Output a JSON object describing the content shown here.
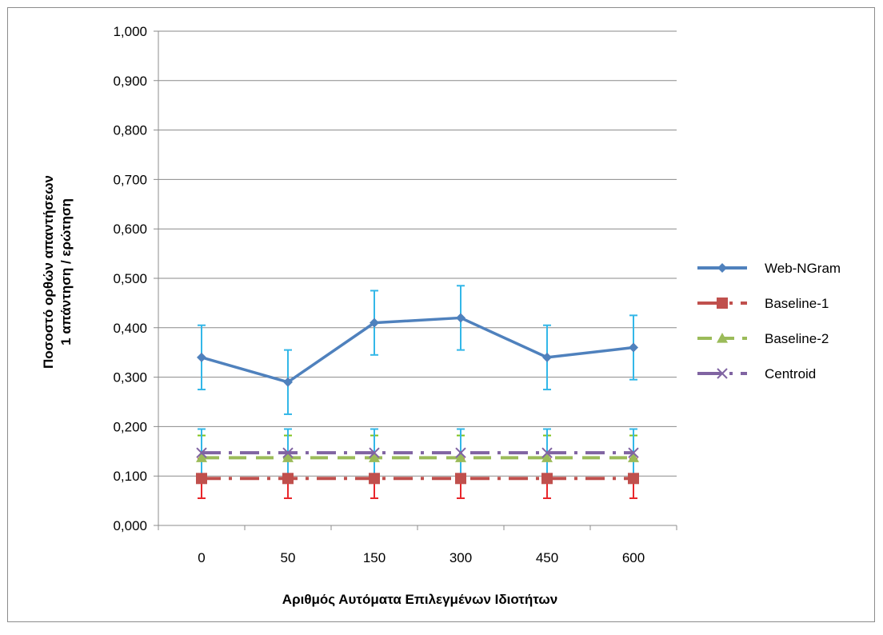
{
  "chart_data": {
    "type": "line",
    "title": "",
    "xlabel": "Αριθμός Αυτόματα Επιλεγμένων Ιδιοτήτων",
    "ylabel_lines": [
      "Ποσοστό ορθών απαντήσεων",
      "1 απάντηση / ερώτηση"
    ],
    "categories": [
      "0",
      "50",
      "150",
      "300",
      "450",
      "600"
    ],
    "ylim": [
      0,
      1
    ],
    "yticks": [
      "0,000",
      "0,100",
      "0,200",
      "0,300",
      "0,400",
      "0,500",
      "0,600",
      "0,700",
      "0,800",
      "0,900",
      "1,000"
    ],
    "grid": "horizontal",
    "legend_position": "right",
    "series": [
      {
        "name": "Web-NGram",
        "values": [
          0.34,
          0.29,
          0.41,
          0.42,
          0.34,
          0.36
        ],
        "error": [
          0.065,
          0.065,
          0.065,
          0.065,
          0.065,
          0.065
        ],
        "color": "#4f81bd",
        "error_color": "#33b7e8",
        "marker": "diamond",
        "dash": "solid"
      },
      {
        "name": "Baseline-1",
        "values": [
          0.095,
          0.095,
          0.095,
          0.095,
          0.095,
          0.095
        ],
        "error": [
          0.04,
          0.04,
          0.04,
          0.04,
          0.04,
          0.04
        ],
        "color": "#c0504d",
        "error_color": "#e8262b",
        "marker": "square",
        "dash": "dash-dot"
      },
      {
        "name": "Baseline-2",
        "values": [
          0.137,
          0.137,
          0.137,
          0.137,
          0.137,
          0.137
        ],
        "error": [
          0.045,
          0.045,
          0.045,
          0.045,
          0.045,
          0.045
        ],
        "color": "#9bbb59",
        "error_color": "#7fc31c",
        "marker": "triangle",
        "dash": "dash"
      },
      {
        "name": "Centroid",
        "values": [
          0.147,
          0.147,
          0.147,
          0.147,
          0.147,
          0.147
        ],
        "error": [
          0.048,
          0.048,
          0.048,
          0.048,
          0.048,
          0.048
        ],
        "color": "#8064a2",
        "error_color": "#33b7e8",
        "marker": "x",
        "dash": "dash-dot"
      }
    ]
  }
}
